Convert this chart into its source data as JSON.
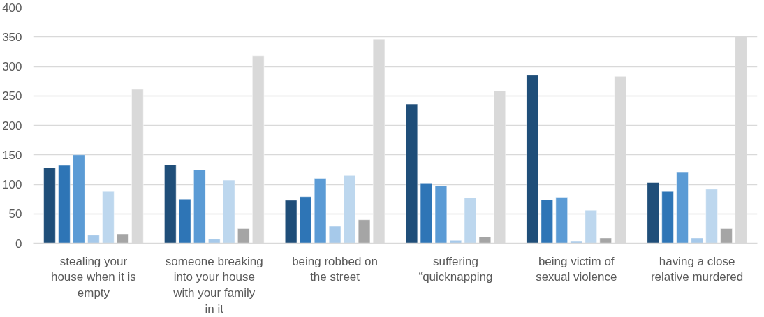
{
  "chart_data": {
    "type": "bar",
    "categories": [
      "stealing your house when it is empty",
      "someone breaking into your house with your family in it",
      "being robbed on the street",
      "suffering “quicknapping",
      "being victim of sexual violence",
      "having a close relative murdered"
    ],
    "series": [
      {
        "color": "#1f4e79",
        "values": [
          128,
          133,
          73,
          236,
          285,
          103
        ]
      },
      {
        "color": "#2e75b6",
        "values": [
          132,
          75,
          79,
          102,
          74,
          88
        ]
      },
      {
        "color": "#5b9bd5",
        "values": [
          150,
          125,
          110,
          97,
          78,
          120
        ]
      },
      {
        "color": "#a6c9ea",
        "values": [
          14,
          7,
          29,
          5,
          4,
          9
        ]
      },
      {
        "color": "#bdd7ee",
        "values": [
          88,
          107,
          115,
          77,
          56,
          92
        ]
      },
      {
        "color": "#a5a5a5",
        "values": [
          16,
          25,
          40,
          11,
          9,
          25
        ]
      },
      {
        "color": "#d9d9d9",
        "values": [
          261,
          318,
          346,
          258,
          283,
          352
        ]
      }
    ],
    "ylim": [
      0,
      400
    ],
    "yticks": [
      0,
      50,
      100,
      150,
      200,
      250,
      300,
      350,
      400
    ],
    "grid": "y"
  }
}
